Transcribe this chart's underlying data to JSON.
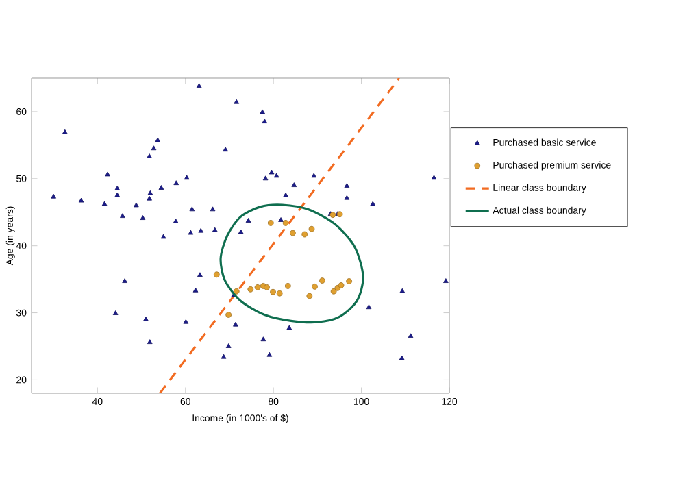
{
  "chart_data": {
    "type": "scatter",
    "xlabel": "Income (in 1000's of $)",
    "ylabel": "Age (in years)",
    "xlim": [
      25,
      120
    ],
    "ylim": [
      18,
      65
    ],
    "xticks": [
      40,
      60,
      80,
      100,
      120
    ],
    "yticks": [
      20,
      30,
      40,
      50,
      60
    ],
    "grid": false,
    "legend": "right",
    "series": [
      {
        "name": "Purchased basic service",
        "marker": "triangle",
        "color": "#1c1c8c",
        "x": [
          30.0,
          32.6,
          36.3,
          42.3,
          41.6,
          44.5,
          44.5,
          48.8,
          51.8,
          52.8,
          53.7,
          52.0,
          51.8,
          54.5,
          57.9,
          60.3,
          63.1,
          69.1,
          45.7,
          50.3,
          57.8,
          61.5,
          66.2,
          61.2,
          63.5,
          66.7,
          55.0,
          46.2,
          63.3,
          62.3,
          44.1,
          51.0,
          51.9,
          60.1,
          68.7,
          69.8,
          71.0,
          71.4,
          71.6,
          77.5,
          78.0,
          78.2,
          79.6,
          80.7,
          84.7,
          82.8,
          89.2,
          96.7,
          96.7,
          102.6,
          116.5,
          81.7,
          74.3,
          72.6,
          93.0,
          94.6,
          119.2,
          109.3,
          101.7,
          83.6,
          77.7,
          79.1,
          111.2,
          109.2
        ],
        "values": [
          47.3,
          56.9,
          46.7,
          50.6,
          46.2,
          48.5,
          47.5,
          46.0,
          53.3,
          54.5,
          55.7,
          47.8,
          47.0,
          48.6,
          49.3,
          50.1,
          63.8,
          54.3,
          44.4,
          44.1,
          43.6,
          45.4,
          45.4,
          41.9,
          42.2,
          42.3,
          41.3,
          34.7,
          35.6,
          33.3,
          29.9,
          29.0,
          25.6,
          28.6,
          23.4,
          25.0,
          32.6,
          28.2,
          61.4,
          59.9,
          58.5,
          50.0,
          50.9,
          50.4,
          49.0,
          47.5,
          50.4,
          48.9,
          47.1,
          46.2,
          50.1,
          43.8,
          43.7,
          42.0,
          44.7,
          44.7,
          34.7,
          33.2,
          30.8,
          27.7,
          26.0,
          23.7,
          26.5,
          23.2
        ]
      },
      {
        "name": "Purchased premium service",
        "marker": "circle",
        "color": "#e0a030",
        "x": [
          79.4,
          82.8,
          95.1,
          84.4,
          87.1,
          88.7,
          93.5,
          88.2,
          69.8,
          67.1,
          71.6,
          74.8,
          76.4,
          77.7,
          78.5,
          79.9,
          81.4,
          83.3,
          89.4,
          91.1,
          93.7,
          94.6,
          95.4,
          97.2
        ],
        "values": [
          43.4,
          43.4,
          44.7,
          41.9,
          41.7,
          42.5,
          44.6,
          32.5,
          29.7,
          35.7,
          33.2,
          33.5,
          33.8,
          34.0,
          33.8,
          33.1,
          32.9,
          34.0,
          33.9,
          34.8,
          33.2,
          33.7,
          34.1,
          34.7
        ]
      },
      {
        "name": "Linear class boundary",
        "type": "line",
        "marker": "none",
        "line_style": "dashed",
        "color": "#f26b21",
        "x": [
          54.2,
          108.6
        ],
        "values": [
          18,
          65
        ]
      }
    ],
    "annotations": [
      "Actual class boundary"
    ]
  }
}
